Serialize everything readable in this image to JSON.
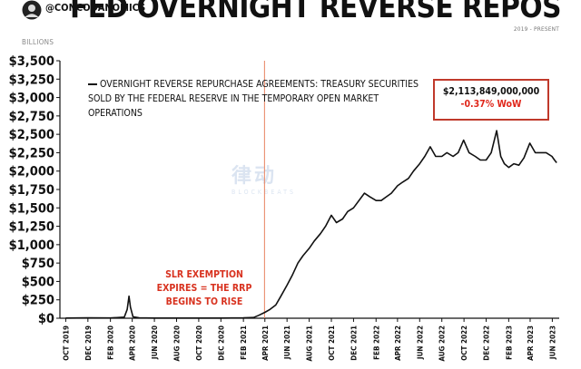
{
  "header": {
    "handle": "@CONCODANOMICS",
    "title": "FED OVERNIGHT REVERSE REPOS",
    "subtitle": "2019 - PRESENT"
  },
  "value_box": {
    "value": "$2,113,849,000,000",
    "change": "-0.37% WoW",
    "change_color": "#e0261a"
  },
  "annotation": {
    "lines": [
      "SLR EXEMPTION",
      "EXPIRES = THE RRP",
      "BEGINS TO RISE"
    ],
    "color": "#d8321f"
  },
  "watermark": {
    "name": "律动",
    "sub": "BLOCKBEATS"
  },
  "chart_data": {
    "type": "line",
    "unit_label": "BILLIONS",
    "series": [
      {
        "name": "OVERNIGHT REVERSE REPURCHASE AGREEMENTS: TREASURY SECURITIES SOLD BY THE FEDERAL RESERVE IN THE TEMPORARY OPEN MARKET OPERATIONS",
        "color": "#111111",
        "points": [
          [
            "2019-10-01",
            2
          ],
          [
            "2019-12-01",
            5
          ],
          [
            "2020-02-01",
            4
          ],
          [
            "2020-03-10",
            15
          ],
          [
            "2020-03-18",
            120
          ],
          [
            "2020-03-23",
            300
          ],
          [
            "2020-03-27",
            150
          ],
          [
            "2020-04-03",
            20
          ],
          [
            "2020-04-20",
            5
          ],
          [
            "2020-06-01",
            3
          ],
          [
            "2020-08-01",
            2
          ],
          [
            "2020-10-01",
            2
          ],
          [
            "2020-12-01",
            3
          ],
          [
            "2021-02-01",
            5
          ],
          [
            "2021-03-01",
            10
          ],
          [
            "2021-03-15",
            40
          ],
          [
            "2021-04-01",
            80
          ],
          [
            "2021-04-15",
            120
          ],
          [
            "2021-05-01",
            180
          ],
          [
            "2021-05-15",
            300
          ],
          [
            "2021-06-01",
            450
          ],
          [
            "2021-06-15",
            580
          ],
          [
            "2021-07-01",
            750
          ],
          [
            "2021-07-15",
            850
          ],
          [
            "2021-08-01",
            950
          ],
          [
            "2021-08-15",
            1050
          ],
          [
            "2021-09-01",
            1150
          ],
          [
            "2021-09-15",
            1250
          ],
          [
            "2021-10-01",
            1400
          ],
          [
            "2021-10-15",
            1300
          ],
          [
            "2021-11-01",
            1350
          ],
          [
            "2021-11-15",
            1450
          ],
          [
            "2021-12-01",
            1500
          ],
          [
            "2021-12-31",
            1700
          ],
          [
            "2022-01-15",
            1650
          ],
          [
            "2022-02-01",
            1600
          ],
          [
            "2022-02-15",
            1600
          ],
          [
            "2022-03-01",
            1650
          ],
          [
            "2022-03-15",
            1700
          ],
          [
            "2022-04-01",
            1800
          ],
          [
            "2022-04-15",
            1850
          ],
          [
            "2022-05-01",
            1900
          ],
          [
            "2022-05-15",
            2000
          ],
          [
            "2022-06-01",
            2100
          ],
          [
            "2022-06-15",
            2200
          ],
          [
            "2022-06-30",
            2330
          ],
          [
            "2022-07-15",
            2200
          ],
          [
            "2022-08-01",
            2200
          ],
          [
            "2022-08-15",
            2250
          ],
          [
            "2022-09-01",
            2200
          ],
          [
            "2022-09-15",
            2250
          ],
          [
            "2022-09-30",
            2420
          ],
          [
            "2022-10-15",
            2250
          ],
          [
            "2022-11-01",
            2200
          ],
          [
            "2022-11-15",
            2150
          ],
          [
            "2022-12-01",
            2150
          ],
          [
            "2022-12-15",
            2250
          ],
          [
            "2022-12-30",
            2550
          ],
          [
            "2023-01-10",
            2200
          ],
          [
            "2023-01-20",
            2100
          ],
          [
            "2023-02-01",
            2050
          ],
          [
            "2023-02-15",
            2100
          ],
          [
            "2023-03-01",
            2080
          ],
          [
            "2023-03-15",
            2180
          ],
          [
            "2023-03-31",
            2380
          ],
          [
            "2023-04-15",
            2250
          ],
          [
            "2023-05-01",
            2250
          ],
          [
            "2023-05-15",
            2250
          ],
          [
            "2023-05-31",
            2200
          ],
          [
            "2023-06-07",
            2150
          ],
          [
            "2023-06-13",
            2113.849
          ]
        ]
      }
    ],
    "xlim": [
      "2019-09-15",
      "2023-06-20"
    ],
    "ylim": [
      0,
      3500
    ],
    "y_ticks": [
      {
        "value": 0,
        "label": "$0"
      },
      {
        "value": 250,
        "label": "$250"
      },
      {
        "value": 500,
        "label": "$500"
      },
      {
        "value": 750,
        "label": "$750"
      },
      {
        "value": 1000,
        "label": "$1,000"
      },
      {
        "value": 1250,
        "label": "$1,250"
      },
      {
        "value": 1500,
        "label": "$1,500"
      },
      {
        "value": 1750,
        "label": "$1,750"
      },
      {
        "value": 2000,
        "label": "$2,000"
      },
      {
        "value": 2250,
        "label": "$2,250"
      },
      {
        "value": 2500,
        "label": "$2,500"
      },
      {
        "value": 2750,
        "label": "$2,750"
      },
      {
        "value": 3000,
        "label": "$3,000"
      },
      {
        "value": 3250,
        "label": "$3,250"
      },
      {
        "value": 3500,
        "label": "$3,500"
      }
    ],
    "x_ticks": [
      {
        "date": "2019-10-01",
        "label": "OCT 2019"
      },
      {
        "date": "2019-12-01",
        "label": "DEC 2019"
      },
      {
        "date": "2020-02-01",
        "label": "FEB 2020"
      },
      {
        "date": "2020-04-01",
        "label": "APR 2020"
      },
      {
        "date": "2020-06-01",
        "label": "JUN 2020"
      },
      {
        "date": "2020-08-01",
        "label": "AUG 2020"
      },
      {
        "date": "2020-10-01",
        "label": "OCT 2020"
      },
      {
        "date": "2020-12-01",
        "label": "DEC 2020"
      },
      {
        "date": "2021-02-01",
        "label": "FEB 2021"
      },
      {
        "date": "2021-04-01",
        "label": "APR 2021"
      },
      {
        "date": "2021-06-01",
        "label": "JUN 2021"
      },
      {
        "date": "2021-08-01",
        "label": "AUG 2021"
      },
      {
        "date": "2021-10-01",
        "label": "OCT 2021"
      },
      {
        "date": "2021-12-01",
        "label": "DEC 2021"
      },
      {
        "date": "2022-02-01",
        "label": "FEB 2022"
      },
      {
        "date": "2022-04-01",
        "label": "APR 2022"
      },
      {
        "date": "2022-06-01",
        "label": "JUN 2022"
      },
      {
        "date": "2022-08-01",
        "label": "AUG 2022"
      },
      {
        "date": "2022-10-01",
        "label": "OCT 2022"
      },
      {
        "date": "2022-12-01",
        "label": "DEC 2022"
      },
      {
        "date": "2023-02-01",
        "label": "FEB 2023"
      },
      {
        "date": "2023-04-01",
        "label": "APR 2023"
      },
      {
        "date": "2023-06-01",
        "label": "JUN 2023"
      }
    ],
    "vertical_marker": {
      "date": "2021-03-31",
      "color": "#e8825f"
    },
    "grid": false
  }
}
